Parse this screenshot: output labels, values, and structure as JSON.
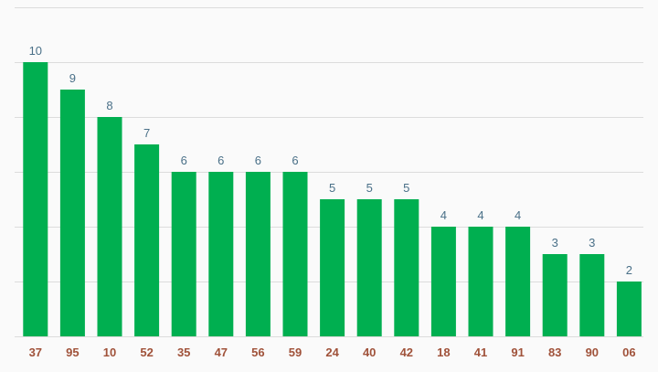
{
  "chart_data": {
    "type": "bar",
    "title": "",
    "xlabel": "",
    "ylabel": "",
    "categories": [
      "37",
      "95",
      "10",
      "52",
      "35",
      "47",
      "56",
      "59",
      "24",
      "40",
      "42",
      "18",
      "41",
      "91",
      "83",
      "90",
      "06"
    ],
    "values": [
      10,
      9,
      8,
      7,
      6,
      6,
      6,
      6,
      5,
      5,
      5,
      4,
      4,
      4,
      3,
      3,
      2
    ],
    "ylim": [
      0,
      12
    ],
    "grid": true,
    "show_y_tick_labels": false,
    "data_labels": true,
    "colors": {
      "bar": "#00af50",
      "value_label": "#4a7088",
      "tick_label": "#a0523a",
      "grid": "#dcdcdc",
      "background": "#fafafa"
    }
  }
}
